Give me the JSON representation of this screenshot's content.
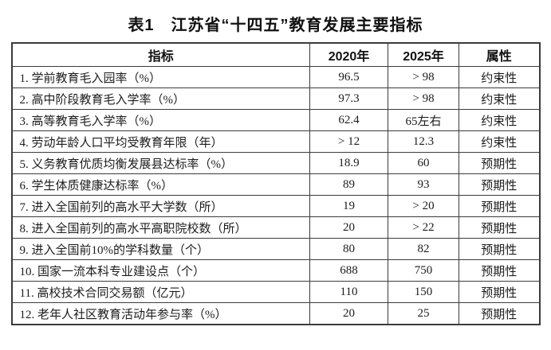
{
  "title": "表1　江苏省“十四五”教育发展主要指标",
  "table": {
    "columns": [
      "指标",
      "2020年",
      "2025年",
      "属性"
    ],
    "rows": [
      {
        "indicator": "1. 学前教育毛入园率（%）",
        "y2020": "96.5",
        "y2025": "> 98",
        "attribute": "约束性"
      },
      {
        "indicator": "2. 高中阶段教育毛入学率（%）",
        "y2020": "97.3",
        "y2025": "> 98",
        "attribute": "约束性"
      },
      {
        "indicator": "3. 高等教育毛入学率（%）",
        "y2020": "62.4",
        "y2025": "65左右",
        "attribute": "约束性"
      },
      {
        "indicator": "4. 劳动年龄人口平均受教育年限（年）",
        "y2020": "> 12",
        "y2025": "12.3",
        "attribute": "约束性"
      },
      {
        "indicator": "5. 义务教育优质均衡发展县达标率（%）",
        "y2020": "18.9",
        "y2025": "60",
        "attribute": "预期性"
      },
      {
        "indicator": "6. 学生体质健康达标率（%）",
        "y2020": "89",
        "y2025": "93",
        "attribute": "预期性"
      },
      {
        "indicator": "7. 进入全国前列的高水平大学数（所）",
        "y2020": "19",
        "y2025": "> 20",
        "attribute": "预期性"
      },
      {
        "indicator": "8. 进入全国前列的高水平高职院校数（所）",
        "y2020": "20",
        "y2025": "> 22",
        "attribute": "预期性"
      },
      {
        "indicator": "9. 进入全国前10%的学科数量（个）",
        "y2020": "80",
        "y2025": "82",
        "attribute": "预期性"
      },
      {
        "indicator": "10. 国家一流本科专业建设点（个）",
        "y2020": "688",
        "y2025": "750",
        "attribute": "预期性"
      },
      {
        "indicator": "11. 高校技术合同交易额（亿元）",
        "y2020": "110",
        "y2025": "150",
        "attribute": "预期性"
      },
      {
        "indicator": "12. 老年人社区教育活动年参与率（%）",
        "y2020": "20",
        "y2025": "25",
        "attribute": "预期性"
      }
    ]
  }
}
